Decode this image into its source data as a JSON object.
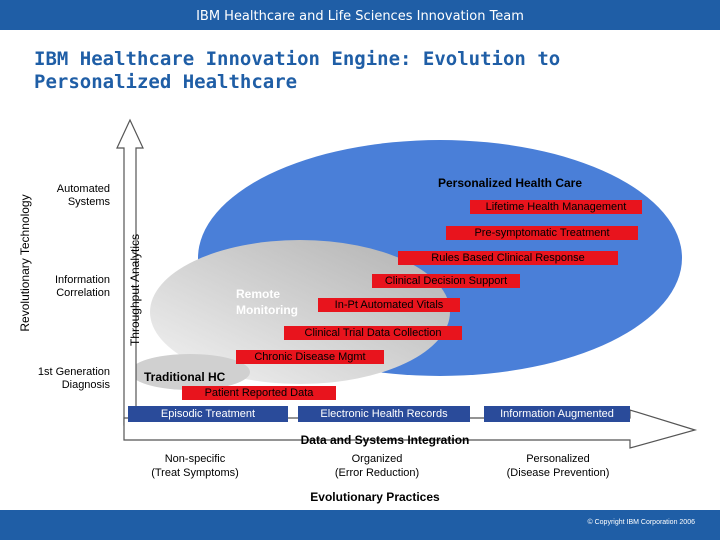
{
  "header": {
    "text": "IBM Healthcare and Life Sciences Innovation Team"
  },
  "title": "IBM Healthcare Innovation Engine: Evolution to Personalized Healthcare",
  "axes": {
    "y_outer": "Revolutionary Technology",
    "y_inner": "Throughput Analytics",
    "x_top": "Data and Systems Integration",
    "x_bottom": "Evolutionary Practices"
  },
  "y_levels": [
    {
      "lines": [
        "Automated",
        "Systems"
      ]
    },
    {
      "lines": [
        "Information",
        "Correlation"
      ]
    },
    {
      "lines": [
        "1st Generation",
        "Diagnosis"
      ]
    }
  ],
  "x_levels": [
    {
      "lines": [
        "Non-specific",
        "(Treat Symptoms)"
      ]
    },
    {
      "lines": [
        "Organized",
        "(Error Reduction)"
      ]
    },
    {
      "lines": [
        "Personalized",
        "(Disease Prevention)"
      ]
    }
  ],
  "regions": {
    "personalized": "Personalized Health Care",
    "remote": "Remote\nMonitoring",
    "traditional": "Traditional HC"
  },
  "red_items": [
    "Lifetime Health Management",
    "Pre-symptomatic Treatment",
    "Rules Based Clinical Response",
    "Clinical Decision Support",
    "In-Pt Automated Vitals",
    "Clinical Trial Data Collection",
    "Chronic Disease Mgmt",
    "Patient Reported Data"
  ],
  "blue_items": [
    "Episodic Treatment",
    "Electronic Health Records",
    "Information Augmented"
  ],
  "colors": {
    "header": "#1f5ea6",
    "ellipse": "#4a7fd8",
    "red": "#e8141d",
    "navy": "#2a4b9a"
  },
  "footer": {
    "copyright": "© Copyright IBM Corporation 2006"
  }
}
